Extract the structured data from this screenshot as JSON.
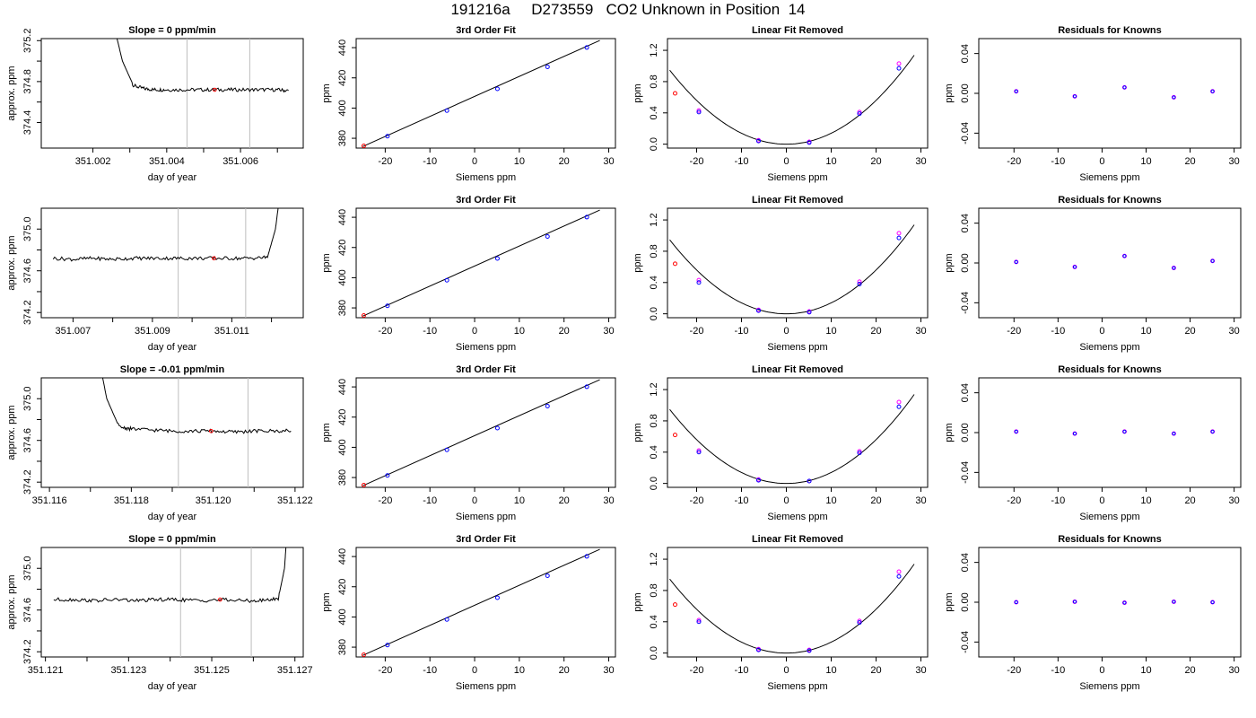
{
  "page": {
    "title": "191216a     D273559   CO2 Unknown in Position  14"
  },
  "colors": {
    "trace": "#000000",
    "marker_highlight": "#ff0000",
    "vline": "#bebebe",
    "point_blue": "#0000ff",
    "point_magenta": "#ff00ff",
    "point_red": "#ff0000",
    "axis": "#000000"
  },
  "chart_data": [
    {
      "type": "line",
      "panel": "timeseries",
      "row": 1,
      "title": "Slope =  0  ppm/min",
      "xlabel": "day of year",
      "ylabel": "approx. ppm",
      "xlim": [
        351.0006,
        351.0077
      ],
      "ylim": [
        374.15,
        375.22
      ],
      "xticks": [
        351.002,
        351.004,
        351.006
      ],
      "xtick_labels": [
        "351.002",
        "351.004",
        "351.006"
      ],
      "xminor": [
        351.003,
        351.005,
        351.007
      ],
      "yticks": [
        374.4,
        374.6,
        374.8,
        375.0,
        375.2
      ],
      "ytick_labels": [
        "374.4",
        "374.8",
        "375.2"
      ],
      "ytick_label_values": [
        374.4,
        374.8,
        375.2
      ],
      "x": [
        351.0026,
        351.0028,
        351.0031,
        351.0034,
        351.0037,
        351.004,
        351.0045,
        351.005,
        351.0055,
        351.006,
        351.0065,
        351.007,
        351.0073
      ],
      "y": [
        375.3,
        375.0,
        374.76,
        374.73,
        374.72,
        374.72,
        374.72,
        374.72,
        374.72,
        374.72,
        374.72,
        374.72,
        374.71
      ],
      "spike": "start",
      "plateau": 374.72,
      "vlines": [
        351.00455,
        351.00625
      ],
      "marker": {
        "x": 351.0053,
        "y": 374.72
      }
    },
    {
      "type": "scatter",
      "panel": "fit",
      "row": 1,
      "title": "3rd Order Fit",
      "xlabel": "Siemens ppm",
      "ylabel": "ppm",
      "xlim": [
        -26.5,
        31.5
      ],
      "ylim": [
        373.5,
        446
      ],
      "xticks": [
        -20,
        -10,
        0,
        10,
        20,
        30
      ],
      "xtick_labels": [
        "-20",
        "-10",
        "0",
        "10",
        "20",
        "30"
      ],
      "yticks": [
        380,
        400,
        420,
        440
      ],
      "ytick_labels": [
        "380",
        "400",
        "420",
        "440"
      ],
      "points_x": [
        -19.5,
        -6.2,
        5.1,
        16.3,
        25.1
      ],
      "points_y": [
        381.4,
        398.3,
        412.7,
        427.3,
        440.1
      ],
      "red_point": {
        "x": -24.8,
        "y": 375.0
      },
      "line": [
        [
          -25,
          374.6
        ],
        [
          28,
          444.8
        ]
      ]
    },
    {
      "type": "scatter",
      "panel": "linear-removed",
      "row": 1,
      "title": "Linear Fit Removed",
      "xlabel": "Siemens ppm",
      "ylabel": "ppm",
      "xlim": [
        -26.5,
        31.5
      ],
      "ylim": [
        -0.05,
        1.35
      ],
      "xticks": [
        -20,
        -10,
        0,
        10,
        20,
        30
      ],
      "xtick_labels": [
        "-20",
        "-10",
        "0",
        "10",
        "20",
        "30"
      ],
      "yticks": [
        0.0,
        0.4,
        0.8,
        1.2
      ],
      "ytick_labels": [
        "0.0",
        "0.4",
        "0.8",
        "1.2"
      ],
      "points_x": [
        -19.5,
        -6.2,
        5.1,
        16.3,
        25.1
      ],
      "points_blue": [
        0.41,
        0.04,
        0.02,
        0.39,
        0.97
      ],
      "points_magenta": [
        0.43,
        0.05,
        0.03,
        0.41,
        1.03
      ],
      "red_point": {
        "x": -24.8,
        "y": 0.65
      },
      "curve_coeffs": [
        0.0014,
        0.0,
        0.0
      ]
    },
    {
      "type": "scatter",
      "panel": "residuals",
      "row": 1,
      "title": "Residuals for Knowns",
      "xlabel": "Siemens ppm",
      "ylabel": "ppm",
      "xlim": [
        -28,
        31.5
      ],
      "ylim": [
        -0.055,
        0.055
      ],
      "xticks": [
        -20,
        -10,
        0,
        10,
        20,
        30
      ],
      "xtick_labels": [
        "-20",
        "-10",
        "0",
        "10",
        "20",
        "30"
      ],
      "yticks": [
        -0.04,
        0.0,
        0.04
      ],
      "ytick_labels": [
        "-0.04",
        "0.00",
        "0.04"
      ],
      "points_x": [
        -19.5,
        -6.2,
        5.1,
        16.3,
        25.1
      ],
      "points_y": [
        0.002,
        -0.003,
        0.006,
        -0.004,
        0.002
      ]
    },
    {
      "type": "line",
      "panel": "timeseries",
      "row": 2,
      "title": "",
      "xlabel": "day of year",
      "ylabel": "approx. ppm",
      "xlim": [
        351.0062,
        351.0128
      ],
      "ylim": [
        374.15,
        375.2
      ],
      "xticks": [
        351.007,
        351.009,
        351.011
      ],
      "xtick_labels": [
        "351.007",
        "351.009",
        "351.011"
      ],
      "xminor": [
        351.008,
        351.01,
        351.012
      ],
      "yticks": [
        374.2,
        374.4,
        374.6,
        374.8,
        375.0
      ],
      "ytick_labels": [
        "374.2",
        "374.6",
        "375.0"
      ],
      "ytick_label_values": [
        374.2,
        374.6,
        375.0
      ],
      "x": [
        351.0065,
        351.007,
        351.0075,
        351.008,
        351.0085,
        351.009,
        351.0095,
        351.01,
        351.0105,
        351.011,
        351.0115,
        351.0119,
        351.0121,
        351.0122
      ],
      "y": [
        374.72,
        374.71,
        374.72,
        374.71,
        374.72,
        374.72,
        374.72,
        374.72,
        374.72,
        374.72,
        374.72,
        374.73,
        375.0,
        375.3
      ],
      "spike": "end",
      "plateau": 374.72,
      "vlines": [
        351.00965,
        351.01135
      ],
      "marker": {
        "x": 351.01055,
        "y": 374.72
      }
    },
    {
      "type": "scatter",
      "panel": "fit",
      "row": 2,
      "title": "3rd Order Fit",
      "xlabel": "Siemens ppm",
      "ylabel": "ppm",
      "xlim": [
        -26.5,
        31.5
      ],
      "ylim": [
        373.5,
        446
      ],
      "xticks": [
        -20,
        -10,
        0,
        10,
        20,
        30
      ],
      "xtick_labels": [
        "-20",
        "-10",
        "0",
        "10",
        "20",
        "30"
      ],
      "yticks": [
        380,
        400,
        420,
        440
      ],
      "ytick_labels": [
        "380",
        "400",
        "420",
        "440"
      ],
      "points_x": [
        -19.5,
        -6.2,
        5.1,
        16.3,
        25.1
      ],
      "points_y": [
        381.4,
        398.3,
        412.7,
        427.3,
        440.1
      ],
      "red_point": {
        "x": -24.8,
        "y": 375.0
      },
      "line": [
        [
          -25,
          374.6
        ],
        [
          28,
          444.8
        ]
      ]
    },
    {
      "type": "scatter",
      "panel": "linear-removed",
      "row": 2,
      "title": "Linear Fit Removed",
      "xlabel": "Siemens ppm",
      "ylabel": "ppm",
      "xlim": [
        -26.5,
        31.5
      ],
      "ylim": [
        -0.05,
        1.35
      ],
      "xticks": [
        -20,
        -10,
        0,
        10,
        20,
        30
      ],
      "xtick_labels": [
        "-20",
        "-10",
        "0",
        "10",
        "20",
        "30"
      ],
      "yticks": [
        0.0,
        0.4,
        0.8,
        1.2
      ],
      "ytick_labels": [
        "0.0",
        "0.4",
        "0.8",
        "1.2"
      ],
      "points_x": [
        -19.5,
        -6.2,
        5.1,
        16.3,
        25.1
      ],
      "points_blue": [
        0.4,
        0.04,
        0.02,
        0.38,
        0.97
      ],
      "points_magenta": [
        0.43,
        0.05,
        0.03,
        0.41,
        1.03
      ],
      "red_point": {
        "x": -24.8,
        "y": 0.64
      },
      "curve_coeffs": [
        0.0014,
        0.0,
        0.0
      ]
    },
    {
      "type": "scatter",
      "panel": "residuals",
      "row": 2,
      "title": "Residuals for Knowns",
      "xlabel": "Siemens ppm",
      "ylabel": "ppm",
      "xlim": [
        -28,
        31.5
      ],
      "ylim": [
        -0.055,
        0.055
      ],
      "xticks": [
        -20,
        -10,
        0,
        10,
        20,
        30
      ],
      "xtick_labels": [
        "-20",
        "-10",
        "0",
        "10",
        "20",
        "30"
      ],
      "yticks": [
        -0.04,
        0.0,
        0.04
      ],
      "ytick_labels": [
        "-0.04",
        "0.00",
        "0.04"
      ],
      "points_x": [
        -19.5,
        -6.2,
        5.1,
        16.3,
        25.1
      ],
      "points_y": [
        0.001,
        -0.004,
        0.007,
        -0.005,
        0.002
      ]
    },
    {
      "type": "line",
      "panel": "timeseries",
      "row": 3,
      "title": "Slope =  -0.01  ppm/min",
      "xlabel": "day of year",
      "ylabel": "approx. ppm",
      "xlim": [
        351.1158,
        351.1222
      ],
      "ylim": [
        374.15,
        375.2
      ],
      "xticks": [
        351.116,
        351.118,
        351.12,
        351.122
      ],
      "xtick_labels": [
        "351.116",
        "351.118",
        "351.120",
        "351.122"
      ],
      "xminor": [
        351.117,
        351.119,
        351.121
      ],
      "yticks": [
        374.2,
        374.4,
        374.6,
        374.8,
        375.0
      ],
      "ytick_labels": [
        "374.2",
        "374.6",
        "375.0"
      ],
      "ytick_label_values": [
        374.2,
        374.6,
        375.0
      ],
      "x": [
        351.11725,
        351.1174,
        351.1177,
        351.118,
        351.1185,
        351.119,
        351.1195,
        351.12,
        351.1205,
        351.121,
        351.1215,
        351.1219
      ],
      "y": [
        375.3,
        375.0,
        374.73,
        374.71,
        374.7,
        374.69,
        374.69,
        374.69,
        374.68,
        374.69,
        374.69,
        374.69
      ],
      "spike": "start",
      "plateau": 374.69,
      "vlines": [
        351.11915,
        351.12085
      ],
      "marker": {
        "x": 351.11995,
        "y": 374.69
      }
    },
    {
      "type": "scatter",
      "panel": "fit",
      "row": 3,
      "title": "3rd Order Fit",
      "xlabel": "Siemens ppm",
      "ylabel": "ppm",
      "xlim": [
        -26.5,
        31.5
      ],
      "ylim": [
        373.5,
        446
      ],
      "xticks": [
        -20,
        -10,
        0,
        10,
        20,
        30
      ],
      "xtick_labels": [
        "-20",
        "-10",
        "0",
        "10",
        "20",
        "30"
      ],
      "yticks": [
        380,
        400,
        420,
        440
      ],
      "ytick_labels": [
        "380",
        "400",
        "420",
        "440"
      ],
      "points_x": [
        -19.5,
        -6.2,
        5.1,
        16.3,
        25.1
      ],
      "points_y": [
        381.4,
        398.3,
        412.7,
        427.3,
        440.1
      ],
      "red_point": {
        "x": -24.8,
        "y": 375.0
      },
      "line": [
        [
          -25,
          374.6
        ],
        [
          28,
          444.8
        ]
      ]
    },
    {
      "type": "scatter",
      "panel": "linear-removed",
      "row": 3,
      "title": "Linear Fit Removed",
      "xlabel": "Siemens ppm",
      "ylabel": "ppm",
      "xlim": [
        -26.5,
        31.5
      ],
      "ylim": [
        -0.05,
        1.35
      ],
      "xticks": [
        -20,
        -10,
        0,
        10,
        20,
        30
      ],
      "xtick_labels": [
        "-20",
        "-10",
        "0",
        "10",
        "20",
        "30"
      ],
      "yticks": [
        0.0,
        0.4,
        0.8,
        1.2
      ],
      "ytick_labels": [
        "0.0",
        "0.4",
        "0.8",
        "1.2"
      ],
      "points_x": [
        -19.5,
        -6.2,
        5.1,
        16.3,
        25.1
      ],
      "points_blue": [
        0.4,
        0.04,
        0.03,
        0.39,
        0.98
      ],
      "points_magenta": [
        0.42,
        0.05,
        0.03,
        0.41,
        1.04
      ],
      "red_point": {
        "x": -24.8,
        "y": 0.62
      },
      "curve_coeffs": [
        0.0014,
        0.0,
        0.0
      ]
    },
    {
      "type": "scatter",
      "panel": "residuals",
      "row": 3,
      "title": "Residuals for Knowns",
      "xlabel": "Siemens ppm",
      "ylabel": "ppm",
      "xlim": [
        -28,
        31.5
      ],
      "ylim": [
        -0.055,
        0.055
      ],
      "xticks": [
        -20,
        -10,
        0,
        10,
        20,
        30
      ],
      "xtick_labels": [
        "-20",
        "-10",
        "0",
        "10",
        "20",
        "30"
      ],
      "yticks": [
        -0.04,
        0.0,
        0.04
      ],
      "ytick_labels": [
        "-0.04",
        "0.00",
        "0.04"
      ],
      "points_x": [
        -19.5,
        -6.2,
        5.1,
        16.3,
        25.1
      ],
      "points_y": [
        0.001,
        -0.001,
        0.001,
        -0.001,
        0.001
      ]
    },
    {
      "type": "line",
      "panel": "timeseries",
      "row": 4,
      "title": "Slope =  0  ppm/min",
      "xlabel": "day of year",
      "ylabel": "approx. ppm",
      "xlim": [
        351.1209,
        351.1272
      ],
      "ylim": [
        374.15,
        375.2
      ],
      "xticks": [
        351.121,
        351.123,
        351.125,
        351.127
      ],
      "xtick_labels": [
        "351.121",
        "351.123",
        "351.125",
        "351.127"
      ],
      "xminor": [
        351.122,
        351.124,
        351.126
      ],
      "yticks": [
        374.2,
        374.4,
        374.6,
        374.8,
        375.0
      ],
      "ytick_labels": [
        "374.2",
        "374.6",
        "375.0"
      ],
      "ytick_label_values": [
        374.2,
        374.6,
        375.0
      ],
      "x": [
        351.1212,
        351.1217,
        351.1222,
        351.1227,
        351.1232,
        351.1237,
        351.1242,
        351.1247,
        351.1252,
        351.1257,
        351.1262,
        351.1266,
        351.12675,
        351.1268
      ],
      "y": [
        374.7,
        374.7,
        374.69,
        374.7,
        374.69,
        374.7,
        374.7,
        374.69,
        374.7,
        374.69,
        374.69,
        374.71,
        375.0,
        375.3
      ],
      "spike": "end",
      "plateau": 374.7,
      "vlines": [
        351.12425,
        351.12595
      ],
      "marker": {
        "x": 351.1252,
        "y": 374.7
      }
    },
    {
      "type": "scatter",
      "panel": "fit",
      "row": 4,
      "title": "3rd Order Fit",
      "xlabel": "Siemens ppm",
      "ylabel": "ppm",
      "xlim": [
        -26.5,
        31.5
      ],
      "ylim": [
        373.5,
        446
      ],
      "xticks": [
        -20,
        -10,
        0,
        10,
        20,
        30
      ],
      "xtick_labels": [
        "-20",
        "-10",
        "0",
        "10",
        "20",
        "30"
      ],
      "yticks": [
        380,
        400,
        420,
        440
      ],
      "ytick_labels": [
        "380",
        "400",
        "420",
        "440"
      ],
      "points_x": [
        -19.5,
        -6.2,
        5.1,
        16.3,
        25.1
      ],
      "points_y": [
        381.4,
        398.3,
        412.7,
        427.3,
        440.1
      ],
      "red_point": {
        "x": -24.8,
        "y": 375.0
      },
      "line": [
        [
          -25,
          374.6
        ],
        [
          28,
          444.8
        ]
      ]
    },
    {
      "type": "scatter",
      "panel": "linear-removed",
      "row": 4,
      "title": "Linear Fit Removed",
      "xlabel": "Siemens ppm",
      "ylabel": "ppm",
      "xlim": [
        -26.5,
        31.5
      ],
      "ylim": [
        -0.05,
        1.35
      ],
      "xticks": [
        -20,
        -10,
        0,
        10,
        20,
        30
      ],
      "xtick_labels": [
        "-20",
        "-10",
        "0",
        "10",
        "20",
        "30"
      ],
      "yticks": [
        0.0,
        0.4,
        0.8,
        1.2
      ],
      "ytick_labels": [
        "0.0",
        "0.4",
        "0.8",
        "1.2"
      ],
      "points_x": [
        -19.5,
        -6.2,
        5.1,
        16.3,
        25.1
      ],
      "points_blue": [
        0.4,
        0.04,
        0.03,
        0.39,
        0.98
      ],
      "points_magenta": [
        0.42,
        0.05,
        0.04,
        0.41,
        1.04
      ],
      "red_point": {
        "x": -24.8,
        "y": 0.62
      },
      "curve_coeffs": [
        0.0014,
        0.0,
        0.0
      ]
    },
    {
      "type": "scatter",
      "panel": "residuals",
      "row": 4,
      "title": "Residuals for Knowns",
      "xlabel": "Siemens ppm",
      "ylabel": "ppm",
      "xlim": [
        -28,
        31.5
      ],
      "ylim": [
        -0.055,
        0.055
      ],
      "xticks": [
        -20,
        -10,
        0,
        10,
        20,
        30
      ],
      "xtick_labels": [
        "-20",
        "-10",
        "0",
        "10",
        "20",
        "30"
      ],
      "yticks": [
        -0.04,
        0.0,
        0.04
      ],
      "ytick_labels": [
        "-0.04",
        "0.00",
        "0.04"
      ],
      "points_x": [
        -19.5,
        -6.2,
        5.1,
        16.3,
        25.1
      ],
      "points_y": [
        0.0,
        0.0005,
        -0.0005,
        0.0005,
        0.0
      ]
    }
  ]
}
